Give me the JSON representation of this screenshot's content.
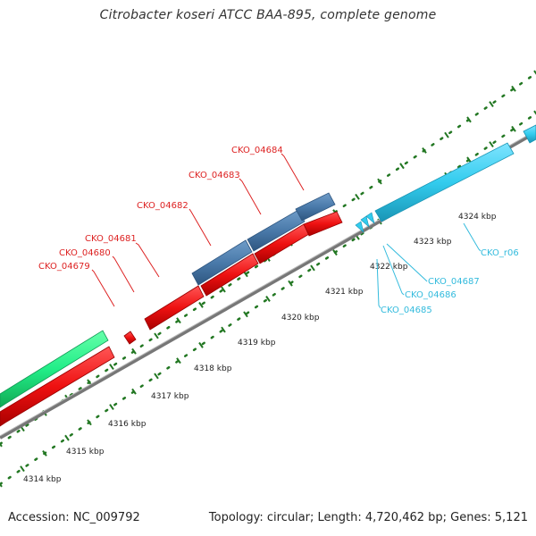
{
  "title": "Citrobacter koseri ATCC BAA-895, complete genome",
  "footer": {
    "accession": "Accession: NC_009792",
    "summary": "Topology: circular; Length: 4,720,462 bp; Genes: 5,121"
  },
  "colors": {
    "forward_cds": "#4a7aaa",
    "reverse_cds": "#ee1111",
    "rna": "#33ccee",
    "other": "#22ee88",
    "backbone": "#888888",
    "ticks": "#227722",
    "forward_label": "#dd2222",
    "reverse_label": "#33bbdd"
  },
  "scale_labels": [
    {
      "kbp": 4314,
      "text": "4314 kbp"
    },
    {
      "kbp": 4315,
      "text": "4315 kbp"
    },
    {
      "kbp": 4316,
      "text": "4316 kbp"
    },
    {
      "kbp": 4317,
      "text": "4317 kbp"
    },
    {
      "kbp": 4318,
      "text": "4318 kbp"
    },
    {
      "kbp": 4319,
      "text": "4319 kbp"
    },
    {
      "kbp": 4320,
      "text": "4320 kbp"
    },
    {
      "kbp": 4321,
      "text": "4321 kbp"
    },
    {
      "kbp": 4322,
      "text": "4322 kbp"
    },
    {
      "kbp": 4323,
      "text": "4323 kbp"
    },
    {
      "kbp": 4324,
      "text": "4324 kbp"
    }
  ],
  "gene_labels_top": [
    "CKO_04679",
    "CKO_04680",
    "CKO_04681",
    "CKO_04682",
    "CKO_04683",
    "CKO_04684"
  ],
  "gene_labels_bottom": [
    "CKO_r06",
    "CKO_04687",
    "CKO_04686",
    "CKO_04685"
  ]
}
